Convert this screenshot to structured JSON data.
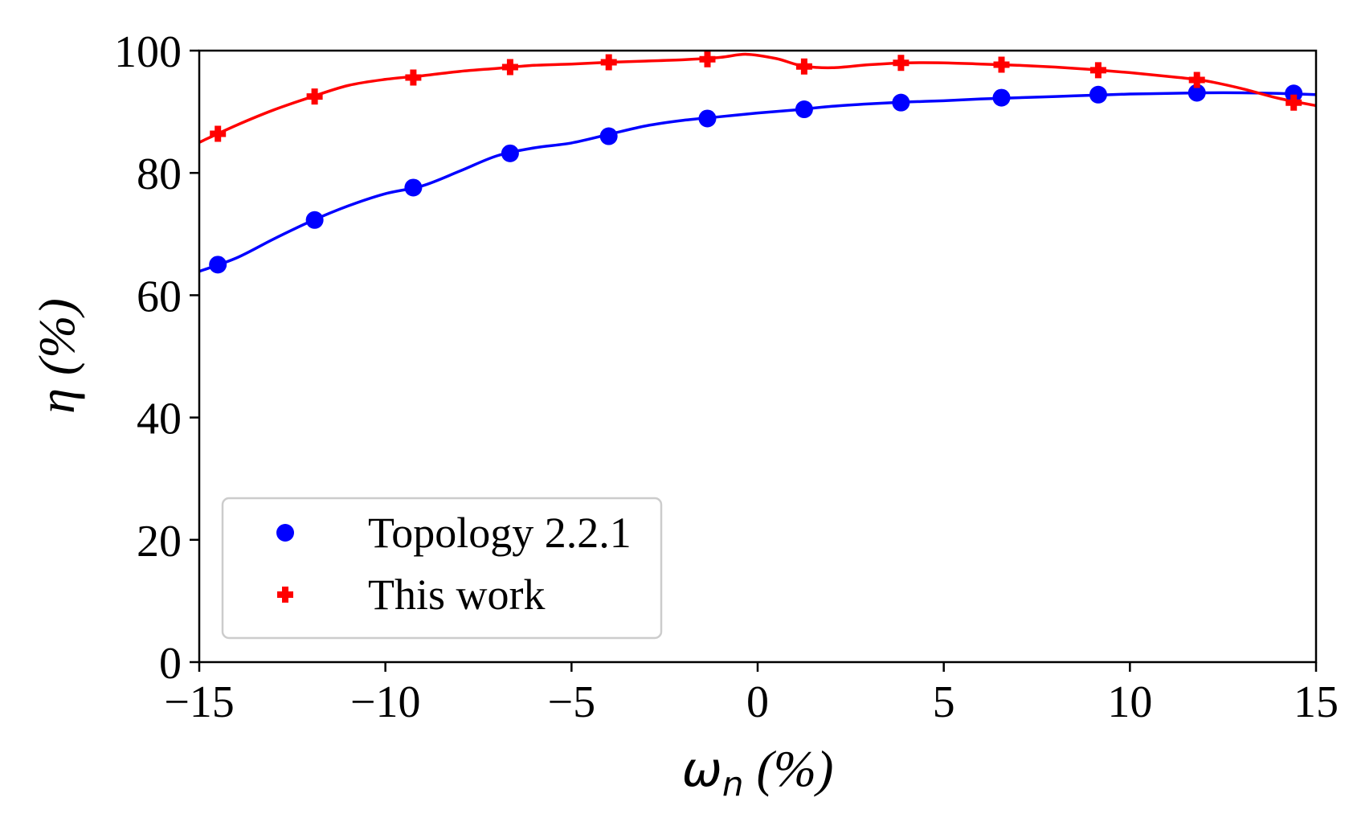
{
  "chart_data": {
    "type": "line",
    "title": "",
    "xlabel": "ω",
    "xlabel_subscript": "n",
    "xlabel_unit": " (%)",
    "ylabel": "η (%)",
    "xlim": [
      -15,
      15
    ],
    "ylim": [
      0,
      100
    ],
    "x_ticks": [
      -15,
      -10,
      -5,
      0,
      5,
      10,
      15
    ],
    "x_tick_labels": [
      "−15",
      "−10",
      "−5",
      "0",
      "5",
      "10",
      "15"
    ],
    "y_ticks": [
      0,
      20,
      40,
      60,
      80,
      100
    ],
    "y_tick_labels": [
      "0",
      "20",
      "40",
      "60",
      "80",
      "100"
    ],
    "grid": false,
    "legend_position": "bottom-left",
    "series": [
      {
        "name": "Topology 2.2.1",
        "color": "#0000ff",
        "marker": "circle",
        "x": [
          -14.5,
          -11.9,
          -9.25,
          -6.65,
          -4.0,
          -1.35,
          1.25,
          3.85,
          6.55,
          9.15,
          11.8,
          14.4
        ],
        "values": [
          65.0,
          72.3,
          77.6,
          83.2,
          86.0,
          88.9,
          90.4,
          91.5,
          92.3,
          92.8,
          93.1,
          93.0
        ],
        "curve_x": [
          -15.0,
          -14.0,
          -13.0,
          -12.0,
          -11.0,
          -10.0,
          -9.0,
          -8.0,
          -7.0,
          -6.0,
          -5.0,
          -4.0,
          -3.0,
          -2.0,
          -1.0,
          0.0,
          1.0,
          2.0,
          3.0,
          4.0,
          5.0,
          6.0,
          7.0,
          8.0,
          9.0,
          10.0,
          11.0,
          12.0,
          13.0,
          14.0,
          15.0
        ],
        "curve_y": [
          63.9,
          66.1,
          69.2,
          72.1,
          74.6,
          76.6,
          77.9,
          80.3,
          82.8,
          84.1,
          84.9,
          86.3,
          87.7,
          88.6,
          89.2,
          89.8,
          90.3,
          90.9,
          91.3,
          91.6,
          91.8,
          92.1,
          92.3,
          92.5,
          92.7,
          92.9,
          93.0,
          93.1,
          93.1,
          93.0,
          92.8
        ]
      },
      {
        "name": "This work",
        "color": "#ff0000",
        "marker": "plus",
        "x": [
          -14.5,
          -11.9,
          -9.25,
          -6.65,
          -4.0,
          -1.35,
          1.25,
          3.85,
          6.55,
          9.15,
          11.8,
          14.4
        ],
        "values": [
          86.4,
          92.5,
          95.6,
          97.3,
          98.1,
          98.6,
          97.4,
          98.0,
          97.7,
          96.8,
          95.2,
          91.5
        ],
        "curve_x": [
          -15.0,
          -14.0,
          -13.0,
          -12.0,
          -11.0,
          -10.0,
          -9.0,
          -8.0,
          -7.0,
          -6.0,
          -5.0,
          -4.0,
          -3.0,
          -2.0,
          -1.0,
          -0.3,
          0.5,
          1.2,
          2.0,
          3.0,
          4.0,
          5.0,
          6.0,
          7.0,
          8.0,
          9.0,
          10.0,
          11.0,
          12.0,
          13.0,
          14.0,
          15.0
        ],
        "curve_y": [
          85.0,
          87.8,
          90.3,
          92.4,
          94.3,
          95.3,
          95.9,
          96.6,
          97.1,
          97.6,
          97.8,
          98.1,
          98.3,
          98.5,
          98.9,
          99.4,
          98.7,
          97.5,
          97.2,
          97.7,
          98.0,
          98.0,
          97.8,
          97.6,
          97.3,
          96.9,
          96.4,
          95.8,
          95.1,
          93.8,
          92.2,
          91.0
        ]
      }
    ]
  }
}
